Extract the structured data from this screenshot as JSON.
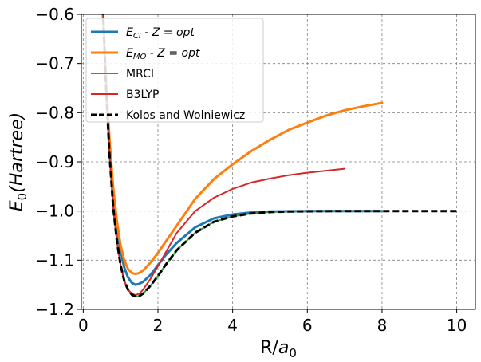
{
  "chart_data": {
    "type": "line",
    "title": "",
    "xlabel_main": "R/",
    "xlabel_sym": "a",
    "xlabel_sub": "0",
    "ylabel_main": "E",
    "ylabel_sub": "0",
    "ylabel_tail": "(Hartree)",
    "xlim": [
      -0.05,
      10.5
    ],
    "ylim": [
      -1.2,
      -0.6
    ],
    "xticks": [
      0,
      2,
      4,
      6,
      8,
      10
    ],
    "xtick_labels": [
      "0",
      "2",
      "4",
      "6",
      "8",
      "10"
    ],
    "yticks": [
      -1.2,
      -1.1,
      -1.0,
      -0.9,
      -0.8,
      -0.7,
      -0.6
    ],
    "ytick_labels": [
      "−1.2",
      "−1.1",
      "−1.0",
      "−0.9",
      "−0.8",
      "−0.7",
      "−0.6"
    ],
    "grid": true,
    "legend_position": "top-left",
    "series": [
      {
        "name": "E_CI - Z = opt",
        "legend_main": "E",
        "legend_sub": "CI",
        "legend_tail": " - Z = opt",
        "color": "#1f77b4",
        "width": 3,
        "dash": "",
        "x": [
          0.5,
          0.6,
          0.7,
          0.8,
          0.9,
          1.0,
          1.1,
          1.2,
          1.3,
          1.4,
          1.5,
          1.6,
          1.8,
          2.0,
          2.2,
          2.5,
          3.0,
          3.5,
          4.0,
          4.5,
          5.0,
          5.5,
          6.0,
          6.5,
          7.0,
          7.5,
          8.0
        ],
        "y": [
          -0.55,
          -0.72,
          -0.86,
          -0.96,
          -1.03,
          -1.08,
          -1.115,
          -1.135,
          -1.146,
          -1.15,
          -1.148,
          -1.144,
          -1.13,
          -1.11,
          -1.09,
          -1.065,
          -1.033,
          -1.015,
          -1.007,
          -1.003,
          -1.001,
          -1.0005,
          -1.0002,
          -1.0001,
          -1.0,
          -1.0,
          -1.0
        ]
      },
      {
        "name": "E_MO - Z = opt",
        "legend_main": "E",
        "legend_sub": "MO",
        "legend_tail": " - Z = opt",
        "color": "#ff7f0e",
        "width": 3,
        "dash": "",
        "x": [
          0.5,
          0.6,
          0.7,
          0.8,
          0.9,
          1.0,
          1.1,
          1.2,
          1.3,
          1.4,
          1.5,
          1.6,
          1.8,
          2.0,
          2.5,
          3.0,
          3.5,
          4.0,
          4.5,
          5.0,
          5.5,
          6.0,
          6.5,
          7.0,
          7.5,
          8.0
        ],
        "y": [
          -0.55,
          -0.72,
          -0.85,
          -0.95,
          -1.02,
          -1.07,
          -1.1,
          -1.118,
          -1.126,
          -1.128,
          -1.126,
          -1.121,
          -1.105,
          -1.085,
          -1.03,
          -0.975,
          -0.935,
          -0.905,
          -0.878,
          -0.855,
          -0.835,
          -0.82,
          -0.806,
          -0.795,
          -0.787,
          -0.78
        ]
      },
      {
        "name": "MRCI",
        "legend_main": "MRCI",
        "legend_sub": "",
        "legend_tail": "",
        "color": "#2ca02c",
        "width": 2,
        "dash": "",
        "x": [
          0.5,
          0.6,
          0.7,
          0.8,
          0.9,
          1.0,
          1.1,
          1.2,
          1.3,
          1.4,
          1.5,
          1.6,
          1.8,
          2.0,
          2.2,
          2.5,
          3.0,
          3.5,
          4.0,
          4.5,
          5.0,
          5.5,
          6.0,
          6.5,
          7.0,
          7.5,
          8.0
        ],
        "y": [
          -0.53,
          -0.73,
          -0.88,
          -0.99,
          -1.06,
          -1.11,
          -1.142,
          -1.16,
          -1.17,
          -1.174,
          -1.173,
          -1.168,
          -1.152,
          -1.132,
          -1.11,
          -1.08,
          -1.044,
          -1.022,
          -1.011,
          -1.005,
          -1.002,
          -1.001,
          -1.0005,
          -1.0002,
          -1.0001,
          -1.0,
          -1.0
        ]
      },
      {
        "name": "B3LYP",
        "legend_main": "B3LYP",
        "legend_sub": "",
        "legend_tail": "",
        "color": "#d62728",
        "width": 2,
        "dash": "",
        "x": [
          0.5,
          0.6,
          0.7,
          0.8,
          0.9,
          1.0,
          1.1,
          1.2,
          1.3,
          1.4,
          1.5,
          1.6,
          1.8,
          2.0,
          2.5,
          3.0,
          3.5,
          4.0,
          4.5,
          5.0,
          5.5,
          6.0,
          6.5,
          7.0
        ],
        "y": [
          -0.53,
          -0.73,
          -0.88,
          -0.99,
          -1.06,
          -1.11,
          -1.142,
          -1.16,
          -1.168,
          -1.171,
          -1.168,
          -1.16,
          -1.138,
          -1.112,
          -1.045,
          -1.0,
          -0.973,
          -0.955,
          -0.942,
          -0.934,
          -0.927,
          -0.922,
          -0.918,
          -0.914
        ]
      },
      {
        "name": "Kolos and Wolniewicz",
        "legend_main": "Kolos and Wolniewicz",
        "legend_sub": "",
        "legend_tail": "",
        "color": "#000000",
        "width": 3,
        "dash": "8,4",
        "x": [
          0.5,
          0.6,
          0.7,
          0.8,
          0.9,
          1.0,
          1.1,
          1.2,
          1.3,
          1.4,
          1.5,
          1.6,
          1.8,
          2.0,
          2.2,
          2.5,
          3.0,
          3.5,
          4.0,
          4.5,
          5.0,
          5.5,
          6.0,
          7.0,
          8.0,
          9.0,
          10.0
        ],
        "y": [
          -0.53,
          -0.73,
          -0.88,
          -0.99,
          -1.06,
          -1.11,
          -1.142,
          -1.16,
          -1.17,
          -1.174,
          -1.173,
          -1.168,
          -1.152,
          -1.132,
          -1.11,
          -1.08,
          -1.044,
          -1.022,
          -1.011,
          -1.005,
          -1.002,
          -1.001,
          -1.0005,
          -1.0001,
          -1.0,
          -1.0,
          -1.0
        ]
      }
    ]
  }
}
